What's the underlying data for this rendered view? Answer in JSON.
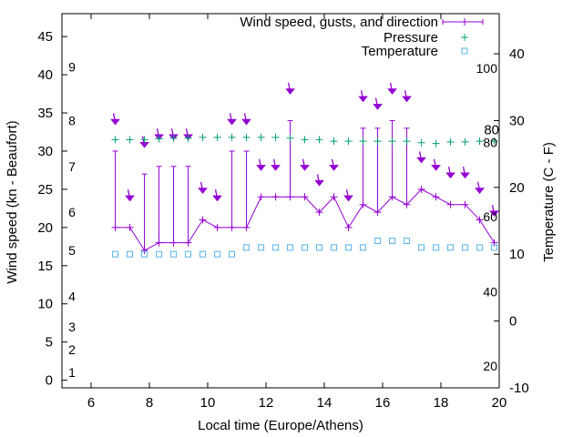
{
  "chart_data": {
    "type": "line",
    "title": "",
    "xlabel": "Local time (Europe/Athens)",
    "ylabel": "Wind speed (kn - Beaufort)",
    "y2label": "Temperature (C - F)",
    "xlim": [
      5,
      20
    ],
    "ylim": [
      -1,
      48
    ],
    "y2lim": [
      -10,
      46
    ],
    "x_ticks": [
      6,
      8,
      10,
      12,
      14,
      16,
      18,
      20
    ],
    "y_ticks": [
      0,
      5,
      10,
      15,
      20,
      25,
      30,
      35,
      40,
      45
    ],
    "y2_ticks": [
      -10,
      0,
      10,
      20,
      30,
      40
    ],
    "beaufort_labels": [
      {
        "label": "1",
        "y": 1
      },
      {
        "label": "2",
        "y": 4
      },
      {
        "label": "3",
        "y": 7
      },
      {
        "label": "4",
        "y": 11
      },
      {
        "label": "5",
        "y": 17
      },
      {
        "label": "6",
        "y": 22
      },
      {
        "label": "7",
        "y": 28
      },
      {
        "label": "8",
        "y": 34
      },
      {
        "label": "9",
        "y": 41
      }
    ],
    "fahrenheit_labels": [
      {
        "label": "20",
        "y2": -6.7
      },
      {
        "label": "40",
        "y2": 4.4
      },
      {
        "label": "60",
        "y2": 15.6
      },
      {
        "label": "80",
        "y2": 26.7
      },
      {
        "label": "100",
        "y2": 37.8
      }
    ],
    "legend": [
      {
        "label": "Wind speed, gusts, and direction",
        "color": "#9400d3",
        "style": "line-plus"
      },
      {
        "label": "Pressure",
        "color": "#009e73",
        "style": "plus"
      },
      {
        "label": "Temperature",
        "color": "#56b4e9",
        "style": "square"
      }
    ],
    "colors": {
      "wind": "#9400d3",
      "pressure": "#009e73",
      "temperature": "#56b4e9"
    },
    "series": [
      {
        "name": "Wind speed, gusts, and direction",
        "x": [
          6.83,
          7.33,
          7.83,
          8.33,
          8.83,
          9.33,
          9.83,
          10.33,
          10.83,
          11.33,
          11.83,
          12.33,
          12.83,
          13.33,
          13.83,
          14.33,
          14.83,
          15.33,
          15.83,
          16.33,
          16.83,
          17.33,
          17.83,
          18.33,
          18.83,
          19.33,
          19.83
        ],
        "speed": [
          20,
          20,
          17,
          18,
          18,
          18,
          21,
          20,
          20,
          20,
          24,
          24,
          24,
          24,
          22,
          24,
          20,
          23,
          22,
          24,
          23,
          25,
          24,
          23,
          23,
          21,
          18
        ],
        "gust": [
          30,
          null,
          27,
          28,
          28,
          28,
          null,
          null,
          30,
          30,
          null,
          null,
          34,
          null,
          null,
          null,
          null,
          33,
          33,
          34,
          33,
          null,
          null,
          null,
          null,
          null,
          null
        ],
        "direction_y": [
          34,
          24,
          31,
          32,
          32,
          32,
          25,
          24,
          34,
          34,
          28,
          28,
          38,
          28,
          26,
          28,
          24,
          37,
          36,
          38,
          37,
          29,
          28,
          27,
          27,
          25,
          22
        ]
      },
      {
        "name": "Pressure",
        "x": [
          6.83,
          7.33,
          7.83,
          8.33,
          8.83,
          9.33,
          9.83,
          10.33,
          10.83,
          11.33,
          11.83,
          12.33,
          12.83,
          13.33,
          13.83,
          14.33,
          14.83,
          15.33,
          15.83,
          16.33,
          16.83,
          17.33,
          17.83,
          18.33,
          18.83,
          19.33,
          19.83
        ],
        "y": [
          31.5,
          31.5,
          31.5,
          31.6,
          31.7,
          31.7,
          31.8,
          31.8,
          31.8,
          31.8,
          31.8,
          31.8,
          31.7,
          31.5,
          31.5,
          31.3,
          31.3,
          31.3,
          31.3,
          31.3,
          31.3,
          31.1,
          31.0,
          31.2,
          31.2,
          31.3,
          31.3
        ]
      },
      {
        "name": "Temperature",
        "x": [
          6.83,
          7.33,
          7.83,
          8.33,
          8.83,
          9.33,
          9.83,
          10.33,
          10.83,
          11.33,
          11.83,
          12.33,
          12.83,
          13.33,
          13.83,
          14.33,
          14.83,
          15.33,
          15.83,
          16.33,
          16.83,
          17.33,
          17.83,
          18.33,
          18.83,
          19.33,
          19.83
        ],
        "y2": [
          10,
          10,
          10,
          10,
          10,
          10,
          10,
          10,
          10,
          11,
          11,
          11,
          11,
          11,
          11,
          11,
          11,
          11,
          12,
          12,
          12,
          11,
          11,
          11,
          11,
          11,
          11
        ]
      }
    ],
    "pressure_label": "80",
    "grid": false
  }
}
